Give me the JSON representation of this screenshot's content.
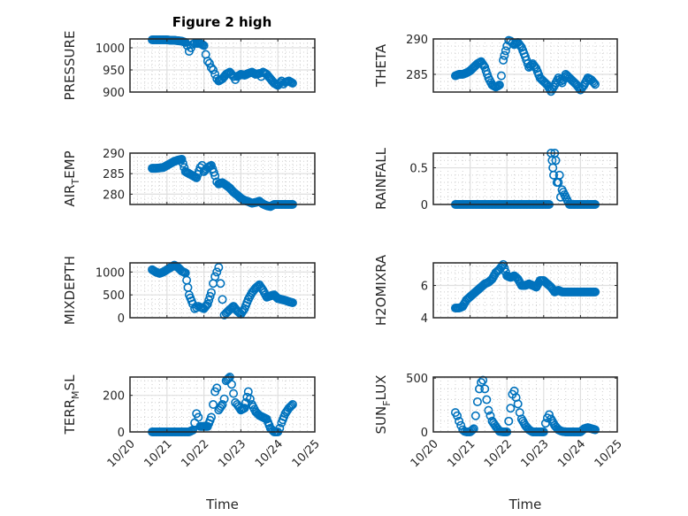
{
  "chart_data": [
    {
      "type": "scatter",
      "title": "Figure 2 high",
      "xlabel": "",
      "ylabel": "PRESSURE",
      "xlim": [
        0,
        5
      ],
      "x_tick_labels": [
        "10/20",
        "10/21",
        "10/22",
        "10/23",
        "10/24",
        "10/25"
      ],
      "ylim": [
        900,
        1020
      ],
      "yticks": [
        900,
        950,
        1000
      ],
      "grid": true,
      "x": [
        0.6,
        0.7,
        0.8,
        0.9,
        1.0,
        1.1,
        1.2,
        1.3,
        1.4,
        1.5,
        1.55,
        1.6,
        1.65,
        1.7,
        1.75,
        1.8,
        1.9,
        2.0,
        2.05,
        2.1,
        2.15,
        2.2,
        2.25,
        2.3,
        2.35,
        2.4,
        2.5,
        2.6,
        2.7,
        2.8,
        2.85,
        2.9,
        3.0,
        3.1,
        3.2,
        3.3,
        3.4,
        3.5,
        3.55,
        3.6,
        3.7,
        3.8,
        3.9,
        4.0,
        4.1,
        4.15,
        4.2,
        4.3,
        4.4
      ],
      "values": [
        1018,
        1018,
        1018,
        1018,
        1018,
        1017,
        1017,
        1016,
        1015,
        1012,
        1005,
        992,
        1000,
        1008,
        1010,
        1010,
        1010,
        1005,
        985,
        970,
        965,
        955,
        950,
        940,
        930,
        925,
        930,
        940,
        945,
        935,
        928,
        935,
        940,
        938,
        942,
        945,
        940,
        942,
        935,
        945,
        940,
        930,
        920,
        915,
        925,
        918,
        922,
        925,
        920
      ]
    },
    {
      "type": "scatter",
      "ylabel": "THETA",
      "xlim": [
        0,
        5
      ],
      "x_tick_labels": [
        "10/20",
        "10/21",
        "10/22",
        "10/23",
        "10/24",
        "10/25"
      ],
      "ylim": [
        282.5,
        290
      ],
      "yticks": [
        285,
        290
      ],
      "grid": true,
      "x": [
        0.6,
        0.7,
        0.8,
        0.9,
        1.0,
        1.1,
        1.2,
        1.3,
        1.4,
        1.5,
        1.6,
        1.7,
        1.8,
        1.85,
        1.9,
        2.0,
        2.05,
        2.1,
        2.15,
        2.2,
        2.3,
        2.4,
        2.5,
        2.6,
        2.7,
        2.8,
        2.9,
        3.0,
        3.1,
        3.2,
        3.3,
        3.4,
        3.5,
        3.6,
        3.7,
        3.8,
        3.9,
        4.0,
        4.1,
        4.2,
        4.3,
        4.4
      ],
      "values": [
        284.8,
        285.0,
        285.0,
        285.2,
        285.5,
        286.0,
        286.5,
        286.8,
        286.0,
        284.5,
        283.5,
        283.2,
        283.5,
        284.8,
        287.0,
        289.0,
        289.8,
        289.7,
        289.4,
        289.2,
        289.5,
        288.8,
        287.5,
        286.0,
        286.5,
        285.8,
        284.5,
        284.0,
        283.5,
        282.6,
        283.5,
        284.5,
        283.8,
        285.0,
        284.5,
        284.0,
        283.5,
        282.8,
        283.5,
        284.5,
        284.2,
        283.6
      ]
    },
    {
      "type": "scatter",
      "ylabel": "AIR_TEMP",
      "xlim": [
        0,
        5
      ],
      "x_tick_labels": [
        "10/20",
        "10/21",
        "10/22",
        "10/23",
        "10/24",
        "10/25"
      ],
      "ylim": [
        277.5,
        290
      ],
      "yticks": [
        280,
        285,
        290
      ],
      "grid": true,
      "x": [
        0.6,
        0.7,
        0.8,
        0.9,
        1.0,
        1.1,
        1.2,
        1.3,
        1.4,
        1.5,
        1.6,
        1.7,
        1.8,
        1.9,
        1.95,
        2.0,
        2.1,
        2.2,
        2.3,
        2.35,
        2.4,
        2.5,
        2.6,
        2.7,
        2.8,
        2.9,
        3.0,
        3.1,
        3.2,
        3.3,
        3.4,
        3.5,
        3.6,
        3.7,
        3.8,
        3.9,
        4.0,
        4.1,
        4.2,
        4.3,
        4.4
      ],
      "values": [
        286.3,
        286.3,
        286.4,
        286.5,
        287.0,
        287.5,
        288.0,
        288.3,
        288.5,
        285.5,
        285.0,
        284.5,
        284.0,
        286.5,
        287.0,
        285.5,
        286.5,
        287.0,
        284.5,
        283.0,
        282.5,
        282.8,
        282.2,
        281.5,
        280.5,
        279.8,
        279.0,
        278.5,
        278.2,
        277.8,
        278.0,
        278.3,
        277.6,
        277.2,
        277.0,
        277.5,
        277.5,
        277.5,
        277.5,
        277.5,
        277.5
      ]
    },
    {
      "type": "scatter",
      "ylabel": "RAINFALL",
      "xlim": [
        0,
        5
      ],
      "x_tick_labels": [
        "10/20",
        "10/21",
        "10/22",
        "10/23",
        "10/24",
        "10/25"
      ],
      "ylim": [
        0,
        0.7
      ],
      "yticks": [
        0,
        0.5
      ],
      "grid": true,
      "x": [
        0.6,
        0.8,
        1.0,
        1.2,
        1.4,
        1.6,
        1.8,
        2.0,
        2.2,
        2.4,
        2.6,
        2.8,
        3.0,
        3.15,
        3.2,
        3.23,
        3.25,
        3.27,
        3.3,
        3.33,
        3.36,
        3.4,
        3.43,
        3.46,
        3.5,
        3.6,
        3.7,
        3.8,
        3.9,
        4.0,
        4.1,
        4.2,
        4.3,
        4.4
      ],
      "values": [
        0,
        0,
        0,
        0,
        0,
        0,
        0,
        0,
        0,
        0,
        0,
        0,
        0,
        0,
        0.7,
        0.6,
        0.5,
        0.4,
        0.7,
        0.6,
        0.3,
        0.3,
        0.4,
        0.1,
        0.2,
        0.1,
        0,
        0,
        0,
        0,
        0,
        0,
        0,
        0
      ]
    },
    {
      "type": "scatter",
      "ylabel": "MIXDEPTH",
      "xlim": [
        0,
        5
      ],
      "x_tick_labels": [
        "10/20",
        "10/21",
        "10/22",
        "10/23",
        "10/24",
        "10/25"
      ],
      "ylim": [
        0,
        1200
      ],
      "yticks": [
        0,
        500,
        1000
      ],
      "grid": true,
      "x": [
        0.6,
        0.7,
        0.8,
        0.9,
        1.0,
        1.1,
        1.2,
        1.3,
        1.4,
        1.5,
        1.6,
        1.7,
        1.75,
        1.8,
        1.85,
        1.9,
        2.0,
        2.1,
        2.2,
        2.25,
        2.3,
        2.35,
        2.4,
        2.45,
        2.5,
        2.55,
        2.6,
        2.7,
        2.8,
        2.9,
        3.0,
        3.1,
        3.2,
        3.3,
        3.4,
        3.5,
        3.6,
        3.7,
        3.8,
        3.9,
        4.0,
        4.1,
        4.2,
        4.3,
        4.4
      ],
      "values": [
        1050,
        1000,
        970,
        1000,
        1050,
        1100,
        1150,
        1100,
        1020,
        980,
        500,
        300,
        200,
        220,
        250,
        230,
        200,
        300,
        550,
        750,
        900,
        1000,
        1100,
        750,
        400,
        60,
        100,
        180,
        250,
        150,
        80,
        200,
        400,
        550,
        650,
        720,
        600,
        450,
        480,
        500,
        420,
        400,
        380,
        350,
        330
      ]
    },
    {
      "type": "scatter",
      "ylabel": "H2OMIXRA",
      "xlim": [
        0,
        5
      ],
      "x_tick_labels": [
        "10/20",
        "10/21",
        "10/22",
        "10/23",
        "10/24",
        "10/25"
      ],
      "ylim": [
        4,
        7.4
      ],
      "yticks": [
        4,
        6
      ],
      "grid": true,
      "x": [
        0.6,
        0.7,
        0.8,
        0.9,
        1.0,
        1.1,
        1.2,
        1.3,
        1.4,
        1.5,
        1.6,
        1.7,
        1.8,
        1.9,
        2.0,
        2.1,
        2.2,
        2.3,
        2.4,
        2.5,
        2.6,
        2.7,
        2.8,
        2.9,
        3.0,
        3.1,
        3.2,
        3.3,
        3.4,
        3.5,
        3.6,
        3.7,
        3.8,
        3.9,
        4.0,
        4.1,
        4.2,
        4.3,
        4.4
      ],
      "values": [
        4.6,
        4.6,
        4.7,
        5.1,
        5.3,
        5.5,
        5.7,
        5.9,
        6.1,
        6.2,
        6.4,
        6.8,
        7.0,
        7.3,
        6.6,
        6.5,
        6.6,
        6.4,
        6.0,
        6.0,
        6.1,
        6.0,
        5.9,
        6.3,
        6.3,
        6.1,
        5.9,
        5.6,
        5.7,
        5.6,
        5.6,
        5.6,
        5.6,
        5.6,
        5.6,
        5.6,
        5.6,
        5.6,
        5.6
      ]
    },
    {
      "type": "scatter",
      "ylabel": "TERR_MSL",
      "xlabel": "Time",
      "xlim": [
        0,
        5
      ],
      "x_tick_labels": [
        "10/20",
        "10/21",
        "10/22",
        "10/23",
        "10/24",
        "10/25"
      ],
      "ylim": [
        0,
        300
      ],
      "yticks": [
        0,
        200
      ],
      "grid": true,
      "x": [
        0.6,
        0.8,
        1.0,
        1.2,
        1.4,
        1.6,
        1.7,
        1.75,
        1.8,
        1.85,
        1.9,
        2.0,
        2.1,
        2.2,
        2.25,
        2.3,
        2.35,
        2.4,
        2.5,
        2.55,
        2.6,
        2.7,
        2.75,
        2.8,
        2.85,
        2.9,
        3.0,
        3.1,
        3.2,
        3.25,
        3.3,
        3.4,
        3.5,
        3.6,
        3.7,
        3.8,
        3.9,
        4.0,
        4.05,
        4.1,
        4.2,
        4.3,
        4.4
      ],
      "values": [
        0,
        0,
        0,
        0,
        0,
        0,
        10,
        50,
        100,
        80,
        30,
        30,
        30,
        80,
        150,
        220,
        240,
        120,
        150,
        180,
        280,
        300,
        260,
        210,
        160,
        150,
        120,
        130,
        220,
        180,
        150,
        110,
        90,
        80,
        70,
        20,
        0,
        0,
        20,
        50,
        100,
        130,
        150
      ]
    },
    {
      "type": "scatter",
      "ylabel": "SUN_FLUX",
      "xlabel": "Time",
      "xlim": [
        0,
        5
      ],
      "x_tick_labels": [
        "10/20",
        "10/21",
        "10/22",
        "10/23",
        "10/24",
        "10/25"
      ],
      "ylim": [
        0,
        510
      ],
      "yticks": [
        0,
        500
      ],
      "grid": true,
      "x": [
        0.6,
        0.65,
        0.7,
        0.75,
        0.8,
        0.85,
        0.9,
        1.0,
        1.1,
        1.15,
        1.2,
        1.25,
        1.3,
        1.35,
        1.4,
        1.45,
        1.5,
        1.55,
        1.6,
        1.7,
        1.8,
        1.9,
        2.0,
        2.05,
        2.1,
        2.15,
        2.2,
        2.25,
        2.3,
        2.35,
        2.4,
        2.5,
        2.6,
        2.7,
        2.8,
        2.9,
        3.0,
        3.05,
        3.1,
        3.15,
        3.2,
        3.3,
        3.4,
        3.5,
        3.6,
        3.7,
        3.8,
        3.9,
        4.0,
        4.1,
        4.2,
        4.3,
        4.4
      ],
      "values": [
        180,
        150,
        100,
        60,
        20,
        5,
        0,
        0,
        30,
        150,
        280,
        400,
        460,
        480,
        400,
        300,
        200,
        150,
        100,
        50,
        5,
        0,
        0,
        100,
        220,
        350,
        380,
        320,
        260,
        180,
        120,
        60,
        20,
        0,
        0,
        0,
        0,
        80,
        130,
        160,
        120,
        60,
        20,
        5,
        0,
        0,
        0,
        0,
        0,
        30,
        40,
        30,
        20
      ]
    }
  ]
}
